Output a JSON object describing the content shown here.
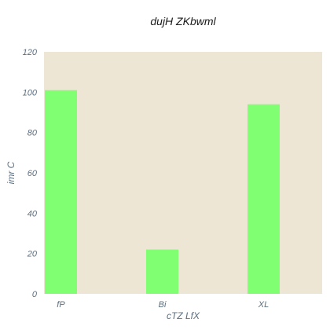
{
  "chart_data": {
    "type": "bar",
    "title": "dujH ZKbwml",
    "xlabel": "cTZ LfX",
    "ylabel": "imr C",
    "categories": [
      "fP",
      "Bi",
      "XL"
    ],
    "values": [
      101,
      22,
      94
    ],
    "ylim": [
      0,
      120
    ],
    "yticks": [
      0,
      20,
      40,
      60,
      80,
      100,
      120
    ],
    "grid": false,
    "colors": {
      "bar": "#80ff72",
      "plot_background": "#ede6d4",
      "tick_text": "#5c6f80",
      "title_text": "#1a1a1a"
    }
  }
}
